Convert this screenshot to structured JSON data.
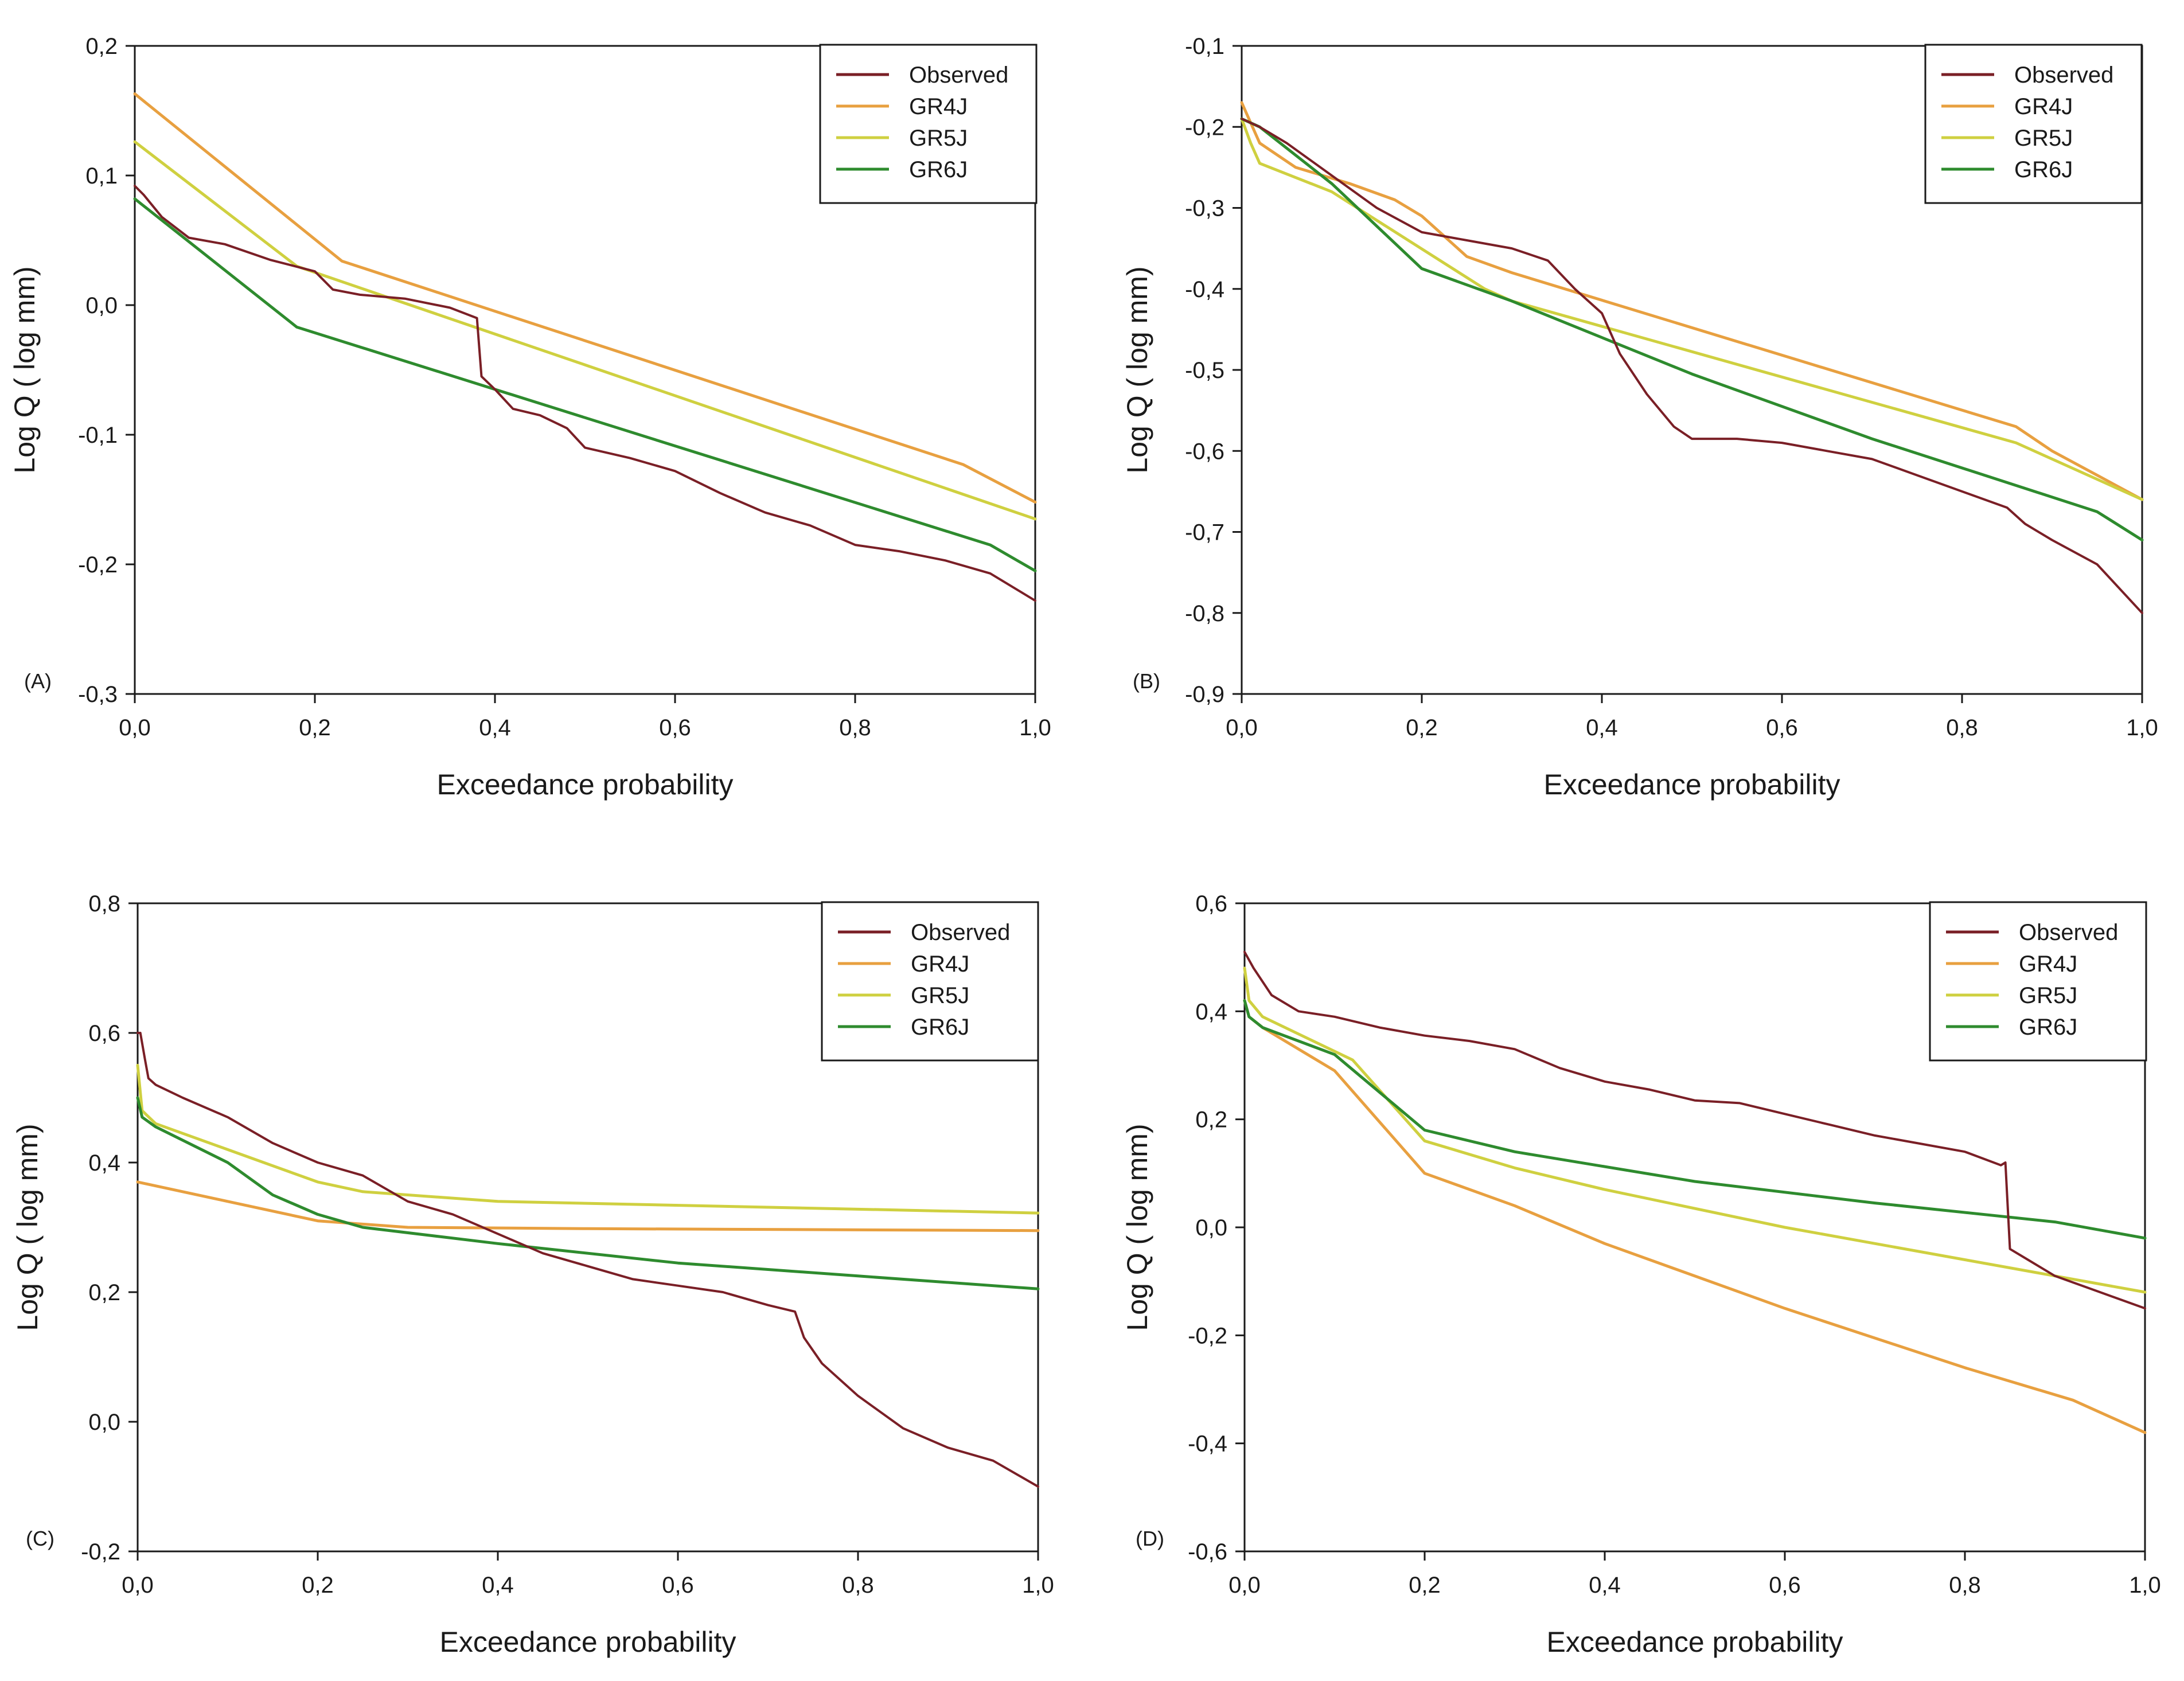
{
  "colors": {
    "Observed": "#7a1f26",
    "GR4J": "#e8a040",
    "GR5J": "#cfd040",
    "GR6J": "#2e8b2e",
    "axis": "#1a1a1a"
  },
  "chart_data": [
    {
      "panel": "(A)",
      "type": "line",
      "xlabel": "Exceedance probability",
      "ylabel": "Log Q ( log mm)",
      "xlim": [
        0,
        1
      ],
      "ylim": [
        -0.3,
        0.2
      ],
      "xticks": [
        "0,0",
        "0,2",
        "0,4",
        "0,6",
        "0,8",
        "1,0"
      ],
      "yticks": [
        "-0,3",
        "-0,2",
        "-0,1",
        "0,0",
        "0,1",
        "0,2"
      ],
      "legend": [
        "Observed",
        "GR4J",
        "GR5J",
        "GR6J"
      ],
      "series": [
        {
          "name": "Observed",
          "x": [
            0,
            0.01,
            0.03,
            0.06,
            0.1,
            0.15,
            0.2,
            0.22,
            0.25,
            0.3,
            0.35,
            0.38,
            0.385,
            0.4,
            0.42,
            0.45,
            0.48,
            0.5,
            0.55,
            0.6,
            0.65,
            0.7,
            0.75,
            0.8,
            0.85,
            0.9,
            0.95,
            1.0
          ],
          "y": [
            0.092,
            0.085,
            0.068,
            0.052,
            0.047,
            0.035,
            0.026,
            0.012,
            0.008,
            0.005,
            -0.002,
            -0.01,
            -0.055,
            -0.065,
            -0.08,
            -0.085,
            -0.095,
            -0.11,
            -0.118,
            -0.128,
            -0.145,
            -0.16,
            -0.17,
            -0.185,
            -0.19,
            -0.197,
            -0.207,
            -0.228
          ]
        },
        {
          "name": "GR4J",
          "x": [
            0,
            0.23,
            0.92,
            1.0
          ],
          "y": [
            0.163,
            0.034,
            -0.123,
            -0.152
          ]
        },
        {
          "name": "GR5J",
          "x": [
            0,
            0.18,
            1.0
          ],
          "y": [
            0.126,
            0.03,
            -0.165
          ]
        },
        {
          "name": "GR6J",
          "x": [
            0,
            0.18,
            0.95,
            1.0
          ],
          "y": [
            0.082,
            -0.017,
            -0.185,
            -0.205
          ]
        }
      ]
    },
    {
      "panel": "(B)",
      "type": "line",
      "xlabel": "Exceedance probability",
      "ylabel": "Log Q ( log mm)",
      "xlim": [
        0,
        1
      ],
      "ylim": [
        -0.9,
        -0.1
      ],
      "xticks": [
        "0,0",
        "0,2",
        "0,4",
        "0,6",
        "0,8",
        "1,0"
      ],
      "yticks": [
        "-0,9",
        "-0,8",
        "-0,7",
        "-0,6",
        "-0,5",
        "-0,4",
        "-0,3",
        "-0,2",
        "-0,1"
      ],
      "legend": [
        "Observed",
        "GR4J",
        "GR5J",
        "GR6J"
      ],
      "series": [
        {
          "name": "Observed",
          "x": [
            0,
            0.02,
            0.05,
            0.1,
            0.15,
            0.2,
            0.25,
            0.3,
            0.34,
            0.37,
            0.4,
            0.42,
            0.45,
            0.48,
            0.5,
            0.55,
            0.6,
            0.65,
            0.7,
            0.75,
            0.8,
            0.85,
            0.87,
            0.9,
            0.95,
            1.0
          ],
          "y": [
            -0.19,
            -0.2,
            -0.22,
            -0.26,
            -0.3,
            -0.33,
            -0.34,
            -0.35,
            -0.365,
            -0.4,
            -0.43,
            -0.48,
            -0.53,
            -0.57,
            -0.585,
            -0.585,
            -0.59,
            -0.6,
            -0.61,
            -0.63,
            -0.65,
            -0.67,
            -0.69,
            -0.71,
            -0.74,
            -0.8
          ]
        },
        {
          "name": "GR4J",
          "x": [
            0,
            0.02,
            0.06,
            0.12,
            0.17,
            0.2,
            0.22,
            0.25,
            0.3,
            0.86,
            0.9,
            0.95,
            1.0
          ],
          "y": [
            -0.17,
            -0.22,
            -0.25,
            -0.27,
            -0.29,
            -0.31,
            -0.33,
            -0.36,
            -0.38,
            -0.57,
            -0.6,
            -0.63,
            -0.66
          ]
        },
        {
          "name": "GR5J",
          "x": [
            0,
            0.01,
            0.02,
            0.1,
            0.27,
            0.3,
            0.86,
            0.9,
            1.0
          ],
          "y": [
            -0.19,
            -0.22,
            -0.245,
            -0.28,
            -0.4,
            -0.415,
            -0.59,
            -0.61,
            -0.66
          ]
        },
        {
          "name": "GR6J",
          "x": [
            0,
            0.02,
            0.1,
            0.2,
            0.3,
            0.5,
            0.7,
            0.95,
            1.0
          ],
          "y": [
            -0.19,
            -0.2,
            -0.27,
            -0.375,
            -0.415,
            -0.505,
            -0.585,
            -0.675,
            -0.71
          ]
        }
      ]
    },
    {
      "panel": "(C)",
      "type": "line",
      "xlabel": "Exceedance probability",
      "ylabel": "Log Q ( log mm)",
      "xlim": [
        0,
        1
      ],
      "ylim": [
        -0.2,
        0.8
      ],
      "xticks": [
        "0,0",
        "0,2",
        "0,4",
        "0,6",
        "0,8",
        "1,0"
      ],
      "yticks": [
        "-0,2",
        "0,0",
        "0,2",
        "0,4",
        "0,6",
        "0,8"
      ],
      "legend": [
        "Observed",
        "GR4J",
        "GR5J",
        "GR6J"
      ],
      "series": [
        {
          "name": "Observed",
          "x": [
            0,
            0.003,
            0.008,
            0.012,
            0.02,
            0.05,
            0.1,
            0.15,
            0.2,
            0.25,
            0.3,
            0.35,
            0.4,
            0.45,
            0.5,
            0.55,
            0.6,
            0.65,
            0.7,
            0.73,
            0.74,
            0.76,
            0.8,
            0.85,
            0.9,
            0.95,
            1.0
          ],
          "y": [
            0.6,
            0.6,
            0.56,
            0.53,
            0.52,
            0.5,
            0.47,
            0.43,
            0.4,
            0.38,
            0.34,
            0.32,
            0.29,
            0.26,
            0.24,
            0.22,
            0.21,
            0.2,
            0.18,
            0.17,
            0.13,
            0.09,
            0.04,
            -0.01,
            -0.04,
            -0.06,
            -0.1
          ]
        },
        {
          "name": "GR4J",
          "x": [
            0,
            0.1,
            0.2,
            0.3,
            0.5,
            1.0
          ],
          "y": [
            0.37,
            0.34,
            0.31,
            0.3,
            0.298,
            0.295
          ]
        },
        {
          "name": "GR5J",
          "x": [
            0,
            0.005,
            0.02,
            0.1,
            0.2,
            0.25,
            0.4,
            1.0
          ],
          "y": [
            0.55,
            0.48,
            0.46,
            0.42,
            0.37,
            0.355,
            0.34,
            0.322
          ]
        },
        {
          "name": "GR6J",
          "x": [
            0,
            0.005,
            0.02,
            0.1,
            0.15,
            0.2,
            0.25,
            0.4,
            0.6,
            0.8,
            1.0
          ],
          "y": [
            0.5,
            0.47,
            0.455,
            0.4,
            0.35,
            0.32,
            0.3,
            0.275,
            0.245,
            0.225,
            0.205
          ]
        }
      ]
    },
    {
      "panel": "(D)",
      "type": "line",
      "xlabel": "Exceedance probability",
      "ylabel": "Log Q ( log mm)",
      "xlim": [
        0,
        1
      ],
      "ylim": [
        -0.6,
        0.6
      ],
      "xticks": [
        "0,0",
        "0,2",
        "0,4",
        "0,6",
        "0,8",
        "1,0"
      ],
      "yticks": [
        "-0,6",
        "-0,4",
        "-0,2",
        "0,0",
        "0,2",
        "0,4",
        "0,6"
      ],
      "legend": [
        "Observed",
        "GR4J",
        "GR5J",
        "GR6J"
      ],
      "series": [
        {
          "name": "Observed",
          "x": [
            0,
            0.01,
            0.03,
            0.06,
            0.1,
            0.15,
            0.2,
            0.25,
            0.3,
            0.35,
            0.4,
            0.45,
            0.5,
            0.55,
            0.6,
            0.65,
            0.7,
            0.75,
            0.8,
            0.84,
            0.845,
            0.85,
            0.87,
            0.9,
            0.95,
            1.0
          ],
          "y": [
            0.51,
            0.48,
            0.43,
            0.4,
            0.39,
            0.37,
            0.355,
            0.345,
            0.33,
            0.295,
            0.27,
            0.255,
            0.235,
            0.23,
            0.21,
            0.19,
            0.17,
            0.155,
            0.14,
            0.115,
            0.12,
            -0.04,
            -0.06,
            -0.09,
            -0.12,
            -0.15
          ]
        },
        {
          "name": "GR4J",
          "x": [
            0,
            0.005,
            0.02,
            0.1,
            0.2,
            0.3,
            0.4,
            0.6,
            0.8,
            0.92,
            1.0
          ],
          "y": [
            0.42,
            0.39,
            0.37,
            0.29,
            0.1,
            0.04,
            -0.03,
            -0.15,
            -0.26,
            -0.32,
            -0.38
          ]
        },
        {
          "name": "GR5J",
          "x": [
            0,
            0.005,
            0.02,
            0.12,
            0.2,
            0.3,
            0.4,
            0.6,
            0.8,
            1.0
          ],
          "y": [
            0.48,
            0.42,
            0.39,
            0.31,
            0.16,
            0.11,
            0.07,
            0.0,
            -0.06,
            -0.12
          ]
        },
        {
          "name": "GR6J",
          "x": [
            0,
            0.005,
            0.02,
            0.1,
            0.2,
            0.3,
            0.5,
            0.7,
            0.9,
            1.0
          ],
          "y": [
            0.42,
            0.39,
            0.37,
            0.32,
            0.18,
            0.14,
            0.085,
            0.045,
            0.01,
            -0.02
          ]
        }
      ]
    }
  ]
}
